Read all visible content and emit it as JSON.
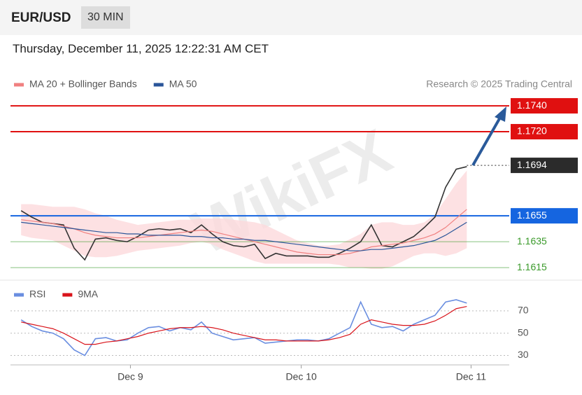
{
  "header": {
    "symbol": "EUR/USD",
    "timeframe": "30 MIN",
    "date": "Thursday, December 11, 2025 12:22:31 AM CET"
  },
  "watermark": "WikiFX",
  "chart_data": [
    {
      "type": "line",
      "source": "Research © 2025 Trading Central",
      "x": [
        0,
        1,
        2,
        3,
        4,
        5,
        6,
        7,
        8,
        9,
        10,
        11,
        12,
        13,
        14,
        15,
        16,
        17,
        18,
        19,
        20,
        21,
        22,
        23,
        24,
        25,
        26,
        27,
        28,
        29,
        30,
        31,
        32,
        33,
        34,
        35,
        36,
        37,
        38,
        39,
        40,
        41,
        42
      ],
      "xlim": [
        -1,
        46
      ],
      "ylim": [
        1.1608,
        1.1746
      ],
      "series": [
        {
          "color": "#333333",
          "values": [
            1.1659,
            1.1654,
            1.165,
            1.1649,
            1.1648,
            1.163,
            1.1621,
            1.1637,
            1.1638,
            1.1636,
            1.1635,
            1.1639,
            1.1644,
            1.1645,
            1.1644,
            1.1645,
            1.1642,
            1.1648,
            1.1641,
            1.1635,
            1.1632,
            1.1631,
            1.1633,
            1.1622,
            1.1626,
            1.1624,
            1.1624,
            1.1624,
            1.1623,
            1.1623,
            1.1626,
            1.163,
            1.1635,
            1.1648,
            1.1632,
            1.1631,
            1.1635,
            1.1639,
            1.1646,
            1.1654,
            1.1677,
            1.1691,
            1.1693
          ]
        },
        {
          "name": "MA 20 + Bollinger Bands",
          "color": "#f08080",
          "band_color": "#fcd9dc",
          "values": [
            1.1652,
            1.1651,
            1.165,
            1.1649,
            1.1647,
            1.1645,
            1.1642,
            1.164,
            1.1639,
            1.1638,
            1.1638,
            1.1638,
            1.1639,
            1.164,
            1.1641,
            1.1642,
            1.1643,
            1.1644,
            1.1643,
            1.1641,
            1.1639,
            1.1637,
            1.1635,
            1.1633,
            1.1631,
            1.1629,
            1.1627,
            1.1626,
            1.1625,
            1.1625,
            1.1625,
            1.1626,
            1.1628,
            1.1631,
            1.1632,
            1.1633,
            1.1634,
            1.1636,
            1.1638,
            1.1641,
            1.1646,
            1.1653,
            1.166
          ],
          "upper": [
            1.1664,
            1.1664,
            1.1663,
            1.1662,
            1.1662,
            1.1662,
            1.166,
            1.1657,
            1.1655,
            1.1652,
            1.165,
            1.1648,
            1.1649,
            1.165,
            1.1651,
            1.1652,
            1.1652,
            1.1653,
            1.1653,
            1.1653,
            1.1652,
            1.1651,
            1.165,
            1.1648,
            1.1644,
            1.164,
            1.1636,
            1.1634,
            1.1632,
            1.1632,
            1.1633,
            1.1637,
            1.1641,
            1.1648,
            1.165,
            1.165,
            1.1648,
            1.1648,
            1.165,
            1.1656,
            1.1668,
            1.168,
            1.169
          ],
          "lower": [
            1.164,
            1.1638,
            1.1637,
            1.1636,
            1.1632,
            1.1628,
            1.1624,
            1.1623,
            1.1623,
            1.1624,
            1.1626,
            1.1628,
            1.1629,
            1.163,
            1.1631,
            1.1632,
            1.1634,
            1.1635,
            1.1633,
            1.1629,
            1.1626,
            1.1623,
            1.162,
            1.1618,
            1.1618,
            1.1618,
            1.1618,
            1.1618,
            1.1618,
            1.1618,
            1.1617,
            1.1615,
            1.1615,
            1.1614,
            1.1614,
            1.1616,
            1.162,
            1.1624,
            1.1626,
            1.1626,
            1.1624,
            1.1626,
            1.163
          ]
        },
        {
          "name": "MA 50",
          "color": "#2a5599",
          "values": [
            1.165,
            1.1649,
            1.1648,
            1.1647,
            1.1646,
            1.1645,
            1.1644,
            1.1643,
            1.1642,
            1.1642,
            1.1641,
            1.1641,
            1.164,
            1.164,
            1.164,
            1.164,
            1.1639,
            1.1639,
            1.1638,
            1.1638,
            1.1637,
            1.1637,
            1.1636,
            1.1636,
            1.1635,
            1.1634,
            1.1633,
            1.1632,
            1.1631,
            1.163,
            1.1629,
            1.1628,
            1.1628,
            1.1629,
            1.1629,
            1.163,
            1.1631,
            1.1632,
            1.1634,
            1.1636,
            1.164,
            1.1645,
            1.165
          ]
        }
      ],
      "levels": [
        {
          "value": {
            "value": 1.174,
            "label": "1.1740"
          },
          "color": "#e01010",
          "style": "box"
        },
        {
          "value": {
            "value": 1.172,
            "label": "1.1720"
          },
          "color": "#e01010",
          "style": "box"
        },
        {
          "value": {
            "value": 1.1694,
            "label": "1.1694"
          },
          "color": "#2b2b2b",
          "style": "box-dotted"
        },
        {
          "value": {
            "value": 1.1655,
            "label": "1.1655"
          },
          "color": "#1565e0",
          "style": "box"
        },
        {
          "value": {
            "value": 1.1635,
            "label": "1.1635"
          },
          "color": "#3a9a2a",
          "style": "text"
        },
        {
          "value": {
            "value": 1.1615,
            "label": "1.1615"
          },
          "color": "#3a9a2a",
          "style": "text"
        }
      ]
    },
    {
      "type": "line",
      "x": [
        0,
        1,
        2,
        3,
        4,
        5,
        6,
        7,
        8,
        9,
        10,
        11,
        12,
        13,
        14,
        15,
        16,
        17,
        18,
        19,
        20,
        21,
        22,
        23,
        24,
        25,
        26,
        27,
        28,
        29,
        30,
        31,
        32,
        33,
        34,
        35,
        36,
        37,
        38,
        39,
        40,
        41,
        42
      ],
      "xlim": [
        -1,
        46
      ],
      "xticks": [
        {
          "value": 10.3,
          "label": "Dec 9"
        },
        {
          "value": 26.4,
          "label": "Dec 10"
        },
        {
          "value": 42.4,
          "label": "Dec 11"
        }
      ],
      "ylim": [
        25,
        80
      ],
      "yticks": [
        30,
        50,
        70
      ],
      "grid": true,
      "series": [
        {
          "name": "RSI",
          "color": "#6a8ee0",
          "values": [
            62,
            56,
            52,
            50,
            45,
            35,
            30,
            45,
            46,
            43,
            44,
            50,
            55,
            56,
            52,
            55,
            53,
            60,
            50,
            47,
            44,
            45,
            46,
            41,
            42,
            43,
            44,
            44,
            43,
            45,
            50,
            55,
            78,
            58,
            55,
            56,
            52,
            58,
            62,
            66,
            78,
            80,
            77
          ]
        },
        {
          "name": "9MA",
          "color": "#d9141b",
          "values": [
            60,
            58,
            56,
            54,
            50,
            45,
            40,
            40,
            42,
            43,
            45,
            47,
            50,
            52,
            54,
            55,
            55,
            56,
            55,
            53,
            50,
            48,
            46,
            44,
            44,
            43,
            43,
            43,
            43,
            44,
            46,
            49,
            58,
            62,
            60,
            58,
            57,
            57,
            58,
            61,
            66,
            72,
            74
          ]
        }
      ]
    }
  ]
}
